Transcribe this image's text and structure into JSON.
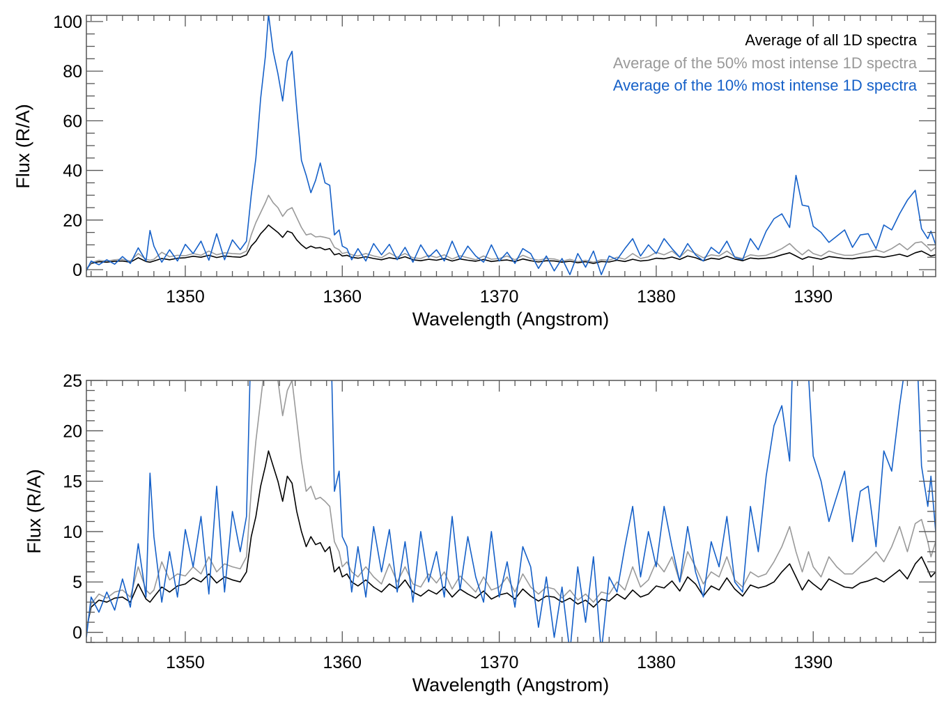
{
  "chart_data": [
    {
      "type": "line",
      "panel": "top",
      "title": "",
      "xlabel": "Wavelength (Angstrom)",
      "ylabel": "Flux (R/A)",
      "xlim": [
        1343.7,
        1397.8
      ],
      "ylim": [
        -2.8,
        102.5
      ],
      "xticks": [
        1350,
        1360,
        1370,
        1380,
        1390
      ],
      "xtick_labels": [
        "1350",
        "1360",
        "1370",
        "1380",
        "1390"
      ],
      "yticks": [
        0,
        20,
        40,
        60,
        80,
        100
      ],
      "ytick_labels": [
        "0",
        "20",
        "40",
        "60",
        "80",
        "100"
      ],
      "x_minor_step": 1,
      "y_minor_step": 5,
      "grid": false,
      "legend": {
        "placement": "top-right",
        "entries": [
          {
            "label": "Average of all 1D spectra",
            "color": "#000000"
          },
          {
            "label": "Average of the 50% most intense 1D spectra",
            "color": "#999999"
          },
          {
            "label": "Average of the 10% most intense 1D spectra",
            "color": "#1560c8"
          }
        ]
      },
      "series_ref": "spectra"
    },
    {
      "type": "line",
      "panel": "bottom",
      "title": "",
      "xlabel": "Wavelength (Angstrom)",
      "ylabel": "Flux (R/A)",
      "xlim": [
        1343.7,
        1397.8
      ],
      "ylim": [
        -1.0,
        25
      ],
      "xticks": [
        1350,
        1360,
        1370,
        1380,
        1390
      ],
      "xtick_labels": [
        "1350",
        "1360",
        "1370",
        "1380",
        "1390"
      ],
      "yticks": [
        0,
        5,
        10,
        15,
        20,
        25
      ],
      "ytick_labels": [
        "0",
        "5",
        "10",
        "15",
        "20",
        "25"
      ],
      "x_minor_step": 1,
      "y_minor_step": 1,
      "grid": false,
      "legend": null,
      "series_ref": "spectra"
    }
  ],
  "spectra": {
    "x": [
      1343.7,
      1344.0,
      1344.5,
      1345.0,
      1345.5,
      1346.0,
      1346.5,
      1347.0,
      1347.5,
      1347.75,
      1348.0,
      1348.5,
      1349.0,
      1349.5,
      1350.0,
      1350.5,
      1351.0,
      1351.5,
      1352.0,
      1352.5,
      1353.0,
      1353.5,
      1353.9,
      1354.2,
      1354.5,
      1354.8,
      1355.1,
      1355.3,
      1355.6,
      1355.9,
      1356.2,
      1356.5,
      1356.8,
      1357.1,
      1357.4,
      1357.7,
      1358.0,
      1358.3,
      1358.6,
      1358.9,
      1359.2,
      1359.5,
      1359.8,
      1360.0,
      1360.3,
      1360.6,
      1361.0,
      1361.5,
      1362.0,
      1362.5,
      1363.0,
      1363.5,
      1364.0,
      1364.5,
      1365.0,
      1365.5,
      1366.0,
      1366.5,
      1367.0,
      1367.5,
      1368.0,
      1368.5,
      1369.0,
      1369.5,
      1370.0,
      1370.5,
      1371.0,
      1371.5,
      1372.0,
      1372.5,
      1373.0,
      1373.5,
      1374.0,
      1374.5,
      1375.0,
      1375.5,
      1376.0,
      1376.5,
      1377.0,
      1377.5,
      1378.0,
      1378.5,
      1379.0,
      1379.5,
      1380.0,
      1380.5,
      1381.0,
      1381.5,
      1382.0,
      1382.5,
      1383.0,
      1383.5,
      1384.0,
      1384.5,
      1385.0,
      1385.5,
      1386.0,
      1386.5,
      1387.0,
      1387.5,
      1388.0,
      1388.5,
      1388.9,
      1389.3,
      1389.7,
      1390.0,
      1390.5,
      1391.0,
      1391.5,
      1392.0,
      1392.5,
      1393.0,
      1393.5,
      1394.0,
      1394.5,
      1395.0,
      1395.5,
      1396.0,
      1396.5,
      1396.9,
      1397.3,
      1397.5,
      1397.8
    ],
    "series": [
      {
        "name": "Average of all 1D spectra",
        "color": "#000000",
        "values": [
          0.3,
          2.5,
          3.2,
          3.0,
          3.4,
          3.5,
          3.0,
          4.8,
          3.3,
          3.0,
          3.5,
          4.5,
          4.0,
          4.6,
          4.8,
          5.4,
          5.0,
          5.8,
          4.9,
          5.5,
          5.2,
          5.0,
          6.0,
          9.5,
          11.5,
          14.5,
          16.5,
          18.0,
          16.5,
          15.0,
          13.0,
          15.5,
          14.8,
          12.0,
          10.0,
          8.5,
          9.5,
          8.7,
          8.9,
          8.0,
          8.5,
          6.0,
          6.5,
          5.5,
          5.8,
          5.0,
          4.6,
          5.2,
          4.5,
          4.0,
          4.8,
          4.3,
          5.2,
          4.0,
          3.6,
          4.2,
          3.8,
          4.5,
          3.5,
          4.3,
          3.8,
          3.4,
          4.1,
          3.3,
          3.7,
          3.9,
          3.3,
          4.3,
          3.6,
          3.1,
          3.6,
          3.5,
          3.0,
          3.4,
          2.8,
          3.2,
          2.5,
          3.3,
          3.1,
          3.8,
          3.3,
          4.2,
          3.5,
          3.8,
          4.6,
          4.4,
          5.1,
          4.1,
          5.5,
          4.8,
          3.6,
          4.6,
          4.2,
          5.4,
          4.3,
          3.6,
          4.7,
          4.4,
          4.6,
          5.0,
          6.0,
          6.8,
          5.5,
          4.2,
          5.2,
          4.8,
          4.2,
          5.3,
          4.9,
          4.5,
          4.4,
          4.9,
          5.1,
          5.4,
          5.0,
          5.6,
          6.2,
          5.3,
          6.8,
          7.5,
          6.2,
          5.5,
          6.0
        ]
      },
      {
        "name": "Average of the 50% most intense 1D spectra",
        "color": "#999999",
        "values": [
          0.3,
          2.8,
          3.8,
          3.4,
          4.0,
          4.2,
          3.5,
          6.5,
          4.2,
          3.8,
          4.2,
          7.0,
          5.2,
          5.8,
          5.6,
          6.5,
          5.8,
          7.5,
          6.0,
          6.8,
          6.5,
          6.3,
          7.5,
          14,
          19,
          23,
          27,
          30,
          27,
          25,
          21.5,
          24,
          25,
          21,
          17,
          14,
          14.5,
          13.2,
          13.4,
          13,
          12.5,
          9,
          8,
          6.5,
          7.0,
          6.0,
          5.5,
          6.5,
          5.5,
          4.8,
          6.8,
          5.0,
          6.5,
          4.8,
          4.5,
          5.8,
          4.9,
          6.0,
          4.3,
          5.6,
          4.8,
          4.0,
          5.5,
          4.2,
          4.5,
          5.5,
          4.0,
          5.8,
          4.5,
          3.8,
          4.5,
          4.3,
          3.4,
          4.2,
          3.2,
          3.8,
          3.0,
          4.0,
          3.8,
          5.0,
          4.2,
          6.5,
          4.5,
          5.2,
          7.0,
          6.0,
          7.5,
          5.0,
          8.0,
          6.5,
          4.8,
          6.0,
          5.5,
          7.5,
          5.2,
          4.5,
          6.0,
          5.5,
          5.8,
          7.0,
          8.5,
          10.5,
          8.0,
          6.0,
          8.0,
          6.5,
          5.5,
          7.5,
          6.5,
          5.8,
          5.8,
          6.5,
          7.2,
          8.0,
          7.0,
          8.5,
          10.5,
          8.0,
          10.8,
          11.2,
          9.0,
          7.5,
          9.0
        ]
      },
      {
        "name": "Average of the 10% most intense 1D spectra",
        "color": "#1560c8",
        "values": [
          -0.5,
          3.5,
          2.0,
          4.0,
          2.2,
          5.3,
          2.5,
          8.8,
          3.5,
          15.8,
          9.5,
          3.0,
          8.0,
          3.5,
          10.2,
          6.5,
          11.5,
          3.8,
          14.5,
          4.0,
          12.0,
          8.0,
          11.5,
          30,
          45,
          69,
          86,
          103,
          88,
          79,
          68,
          84,
          88,
          65,
          44,
          38,
          31,
          36,
          43,
          35,
          34,
          14,
          16,
          9.5,
          8.5,
          4.0,
          8.5,
          3.5,
          10.5,
          6.0,
          10.2,
          4.0,
          9.0,
          3.0,
          10.0,
          5.0,
          8.0,
          3.5,
          11.5,
          4.2,
          9.5,
          5.5,
          3.0,
          10.0,
          3.5,
          7.0,
          2.5,
          8.5,
          6.5,
          0.5,
          5.5,
          -0.5,
          4.5,
          -2.0,
          6.5,
          1.0,
          7.5,
          -2.0,
          5.5,
          4.0,
          8.5,
          12.5,
          5.5,
          10,
          6.5,
          12.5,
          8.5,
          5.0,
          10.5,
          6.0,
          3.5,
          9.0,
          6.5,
          11.5,
          5.0,
          4.0,
          12.5,
          8.0,
          15.5,
          20.5,
          22.5,
          17.0,
          38.0,
          26,
          25.5,
          17.5,
          15.0,
          11.0,
          13.5,
          16.0,
          9.0,
          14.0,
          14.5,
          8.5,
          18.0,
          16.0,
          22.5,
          28,
          32,
          16.5,
          12.5,
          15.5,
          10.0
        ]
      }
    ]
  }
}
